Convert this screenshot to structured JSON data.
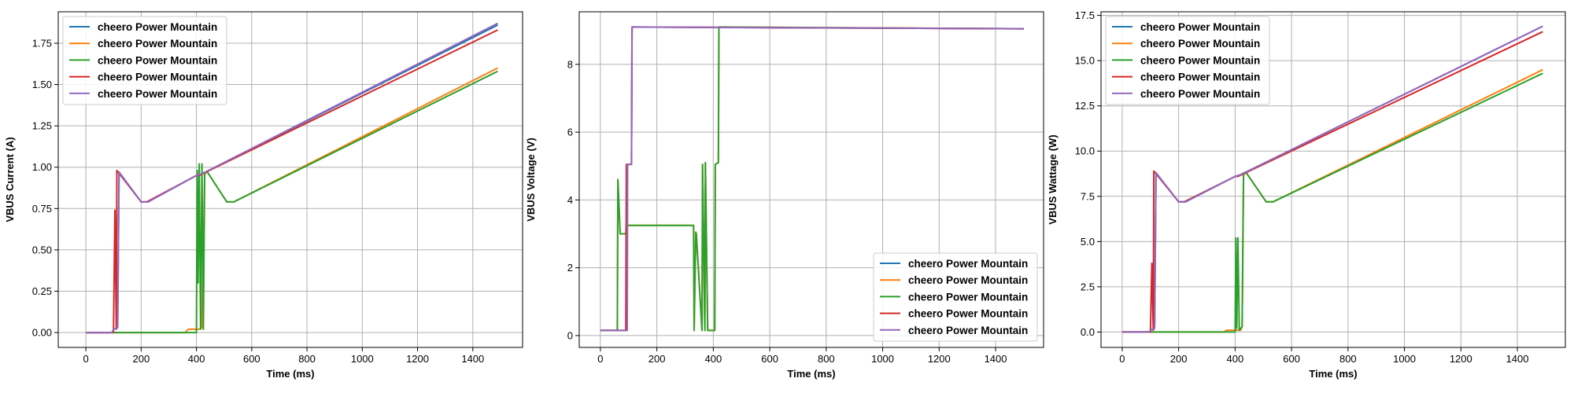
{
  "colors": {
    "blue": "#1f77b4",
    "orange": "#ff7f0e",
    "green": "#2ca02c",
    "red": "#d62728",
    "purple": "#9467bd",
    "grid": "#b0b0b0",
    "frame": "#000000"
  },
  "chart_data": [
    {
      "type": "line",
      "xlabel": "Time (ms)",
      "ylabel": "VBUS Current (A)",
      "xlim": [
        -100,
        1580
      ],
      "ylim": [
        -0.09,
        1.94
      ],
      "xticks": [
        0,
        200,
        400,
        600,
        800,
        1000,
        1200,
        1400
      ],
      "yticks": [
        0.0,
        0.25,
        0.5,
        0.75,
        1.0,
        1.25,
        1.5,
        1.75
      ],
      "ytick_decimals": 2,
      "grid": true,
      "legend_position": "upper-left",
      "series": [
        {
          "name": "cheero Power Mountain",
          "color": "blue",
          "x": [
            0,
            95,
            100,
            115,
            120,
            200,
            225,
            400,
            420,
            1490
          ],
          "y": [
            0,
            0,
            0.02,
            0.03,
            0.97,
            0.79,
            0.79,
            0.95,
            0.96,
            1.86
          ]
        },
        {
          "name": "cheero Power Mountain",
          "color": "orange",
          "x": [
            0,
            360,
            370,
            410,
            420,
            430,
            440,
            510,
            535,
            1490
          ],
          "y": [
            0,
            0,
            0.02,
            0.02,
            0.03,
            0.96,
            0.97,
            0.79,
            0.79,
            1.6
          ]
        },
        {
          "name": "cheero Power Mountain",
          "color": "green",
          "x": [
            0,
            400,
            403,
            406,
            410,
            415,
            420,
            425,
            430,
            440,
            510,
            535,
            1490
          ],
          "y": [
            0,
            0,
            0.98,
            0.3,
            1.02,
            0.02,
            1.02,
            0.02,
            0.97,
            0.97,
            0.79,
            0.79,
            1.58
          ]
        },
        {
          "name": "cheero Power Mountain",
          "color": "red",
          "x": [
            0,
            100,
            105,
            110,
            112,
            200,
            220,
            400,
            410,
            1490
          ],
          "y": [
            0,
            0,
            0.74,
            0.02,
            0.98,
            0.79,
            0.79,
            0.95,
            0.95,
            1.83
          ]
        },
        {
          "name": "cheero Power Mountain",
          "color": "purple",
          "x": [
            0,
            95,
            100,
            115,
            120,
            200,
            225,
            400,
            420,
            1490
          ],
          "y": [
            0,
            0,
            0.02,
            0.03,
            0.97,
            0.79,
            0.79,
            0.95,
            0.96,
            1.87
          ]
        }
      ]
    },
    {
      "type": "line",
      "xlabel": "Time (ms)",
      "ylabel": "VBUS Voltage (V)",
      "xlim": [
        -75,
        1570
      ],
      "ylim": [
        -0.35,
        9.55
      ],
      "xticks": [
        0,
        200,
        400,
        600,
        800,
        1000,
        1200,
        1400
      ],
      "yticks": [
        0,
        2,
        4,
        6,
        8
      ],
      "ytick_decimals": 0,
      "grid": true,
      "legend_position": "lower-right",
      "series": [
        {
          "name": "cheero Power Mountain",
          "color": "blue",
          "x": [
            0,
            95,
            96,
            110,
            112,
            1500
          ],
          "y": [
            0.15,
            0.15,
            5.05,
            5.05,
            9.1,
            9.05
          ]
        },
        {
          "name": "cheero Power Mountain",
          "color": "orange",
          "x": [
            0,
            60,
            62,
            70,
            72,
            90,
            92,
            330,
            332,
            338,
            340,
            360,
            362,
            370,
            372,
            380,
            382,
            405,
            407,
            418,
            420,
            1500
          ],
          "y": [
            0.15,
            0.15,
            4.6,
            3.0,
            3.0,
            3.0,
            3.25,
            3.25,
            0.15,
            3.05,
            3.0,
            0.15,
            5.05,
            0.15,
            5.1,
            0.15,
            0.15,
            0.15,
            5.05,
            5.1,
            9.1,
            9.05
          ]
        },
        {
          "name": "cheero Power Mountain",
          "color": "green",
          "x": [
            0,
            60,
            62,
            70,
            72,
            90,
            92,
            330,
            332,
            338,
            340,
            360,
            362,
            370,
            372,
            380,
            382,
            405,
            407,
            418,
            420,
            1500
          ],
          "y": [
            0.15,
            0.15,
            4.6,
            3.0,
            3.0,
            3.0,
            3.25,
            3.25,
            0.15,
            3.05,
            3.0,
            0.15,
            5.05,
            0.15,
            5.1,
            0.15,
            0.15,
            0.15,
            5.05,
            5.1,
            9.1,
            9.05
          ]
        },
        {
          "name": "cheero Power Mountain",
          "color": "red",
          "x": [
            0,
            90,
            92,
            110,
            112,
            1500
          ],
          "y": [
            0.15,
            0.15,
            5.05,
            5.05,
            9.1,
            9.05
          ]
        },
        {
          "name": "cheero Power Mountain",
          "color": "purple",
          "x": [
            0,
            95,
            96,
            110,
            112,
            1500
          ],
          "y": [
            0.15,
            0.15,
            5.05,
            5.05,
            9.1,
            9.05
          ]
        }
      ]
    },
    {
      "type": "line",
      "xlabel": "Time (ms)",
      "ylabel": "VBUS Wattage (W)",
      "xlim": [
        -75,
        1570
      ],
      "ylim": [
        -0.85,
        17.7
      ],
      "xticks": [
        0,
        200,
        400,
        600,
        800,
        1000,
        1200,
        1400
      ],
      "yticks": [
        0.0,
        2.5,
        5.0,
        7.5,
        10.0,
        12.5,
        15.0,
        17.5
      ],
      "ytick_decimals": 1,
      "grid": true,
      "legend_position": "upper-left",
      "series": [
        {
          "name": "cheero Power Mountain",
          "color": "blue",
          "x": [
            0,
            95,
            100,
            115,
            120,
            200,
            225,
            400,
            420,
            1490
          ],
          "y": [
            0,
            0,
            0.1,
            0.2,
            8.8,
            7.2,
            7.2,
            8.6,
            8.7,
            16.9
          ]
        },
        {
          "name": "cheero Power Mountain",
          "color": "orange",
          "x": [
            0,
            360,
            370,
            420,
            425,
            430,
            440,
            510,
            535,
            1490
          ],
          "y": [
            0,
            0,
            0.1,
            0.1,
            0.3,
            8.7,
            8.8,
            7.2,
            7.2,
            14.5
          ]
        },
        {
          "name": "cheero Power Mountain",
          "color": "green",
          "x": [
            0,
            400,
            403,
            406,
            410,
            415,
            420,
            425,
            430,
            440,
            510,
            535,
            1490
          ],
          "y": [
            0,
            0,
            5.2,
            0.2,
            5.2,
            0.1,
            0.2,
            0.3,
            8.8,
            8.8,
            7.2,
            7.2,
            14.3
          ]
        },
        {
          "name": "cheero Power Mountain",
          "color": "red",
          "x": [
            0,
            100,
            105,
            110,
            112,
            200,
            220,
            400,
            410,
            1490
          ],
          "y": [
            0,
            0,
            3.8,
            0.1,
            8.9,
            7.2,
            7.2,
            8.6,
            8.6,
            16.6
          ]
        },
        {
          "name": "cheero Power Mountain",
          "color": "purple",
          "x": [
            0,
            95,
            100,
            115,
            120,
            200,
            225,
            400,
            420,
            1490
          ],
          "y": [
            0,
            0,
            0.1,
            0.2,
            8.8,
            7.2,
            7.2,
            8.6,
            8.7,
            16.9
          ]
        }
      ]
    }
  ]
}
